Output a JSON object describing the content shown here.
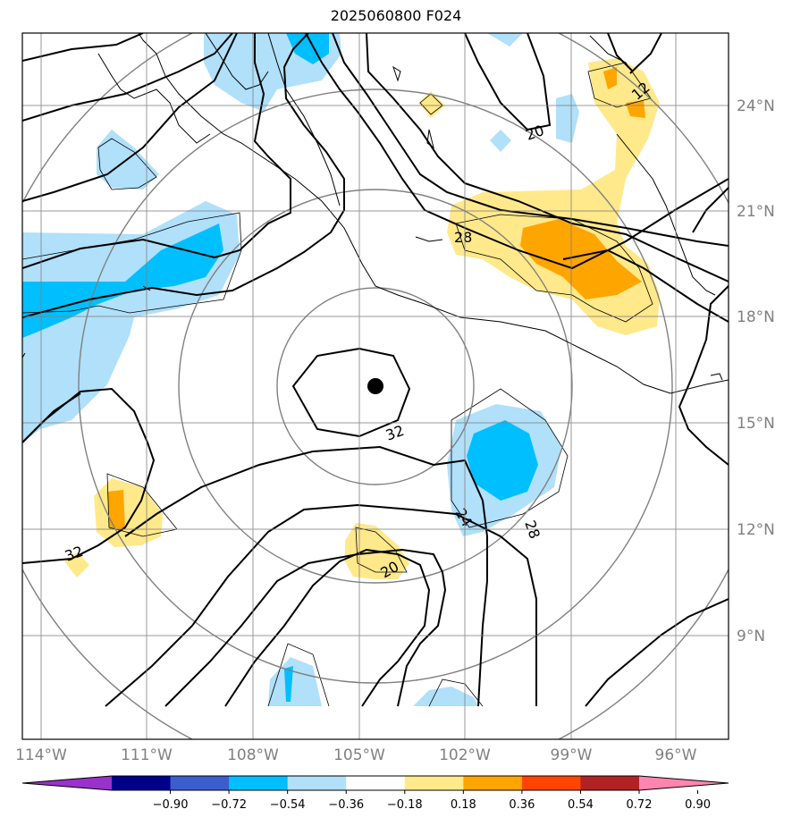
{
  "title": "2025060800 F024",
  "lon_labels": [
    "114°W",
    "111°W",
    "108°W",
    "105°W",
    "102°W",
    "99°W",
    "96°W"
  ],
  "lat_labels": [
    "24°N",
    "21°N",
    "18°N",
    "15°N",
    "12°N",
    "9°N"
  ],
  "colorbar": {
    "ticks": [
      "−0.90",
      "−0.72",
      "−0.54",
      "−0.36",
      "−0.18",
      "0.18",
      "0.36",
      "0.54",
      "0.72",
      "0.90"
    ],
    "colors": [
      "#9932cc",
      "#00008b",
      "#3a5fcd",
      "#00bfff",
      "#b0e0fa",
      "#ffffff",
      "#ffe98a",
      "#ffa500",
      "#ff4500",
      "#b22222",
      "#ff85b0"
    ]
  },
  "contour_labels": [
    "12",
    "20",
    "28",
    "32",
    "24",
    "28",
    "32",
    "20"
  ],
  "center_marker": "storm-center"
}
